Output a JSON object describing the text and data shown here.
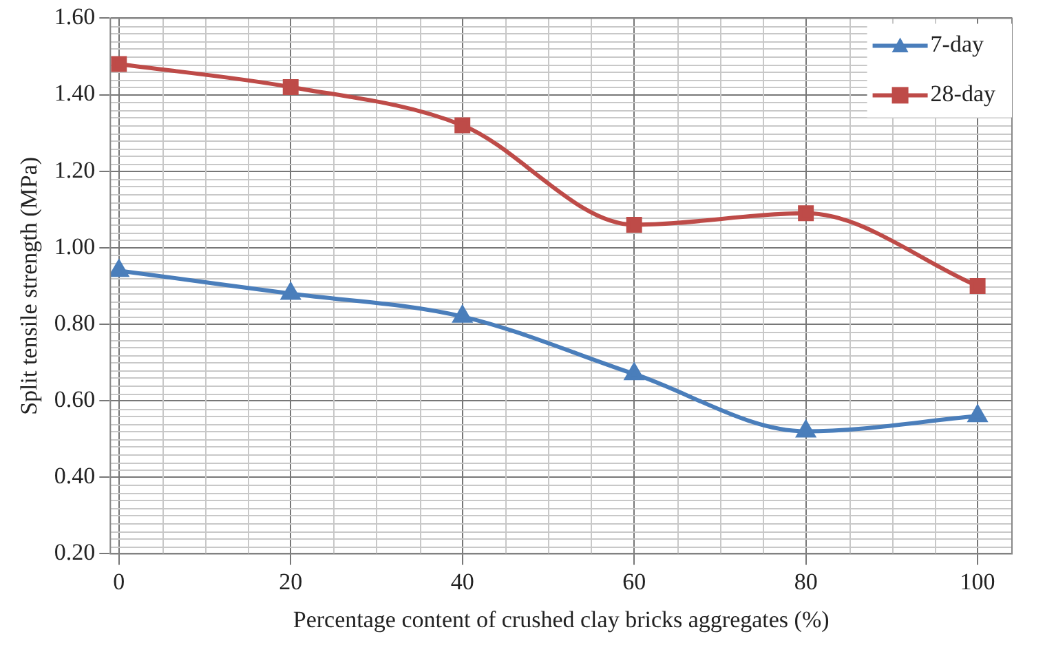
{
  "chart_data": {
    "type": "line",
    "xlabel": "Percentage content of crushed clay bricks aggregates (%)",
    "ylabel": "Split tensile strength (MPa)",
    "x": [
      0,
      20,
      40,
      60,
      80,
      100
    ],
    "series": [
      {
        "name": "7-day",
        "color": "#4a7ebb",
        "marker": "triangle",
        "values": [
          0.94,
          0.88,
          0.82,
          0.67,
          0.52,
          0.56
        ]
      },
      {
        "name": "28-day",
        "color": "#be4b48",
        "marker": "square",
        "values": [
          1.48,
          1.42,
          1.32,
          1.06,
          1.09,
          0.9
        ]
      }
    ],
    "xlim": [
      -1,
      104
    ],
    "xticks": [
      0,
      20,
      40,
      60,
      80,
      100
    ],
    "ylim": [
      0.2,
      1.6
    ],
    "yticks": [
      {
        "value": 0.2,
        "label": "0.20"
      },
      {
        "value": 0.4,
        "label": "0.40"
      },
      {
        "value": 0.6,
        "label": "0.60"
      },
      {
        "value": 0.8,
        "label": "0.80"
      },
      {
        "value": 1.0,
        "label": "1.00"
      },
      {
        "value": 1.2,
        "label": "1.20"
      },
      {
        "value": 1.4,
        "label": "1.40"
      },
      {
        "value": 1.6,
        "label": "1.60"
      }
    ],
    "grid": true,
    "legend": "top right",
    "line_style": "solid"
  }
}
